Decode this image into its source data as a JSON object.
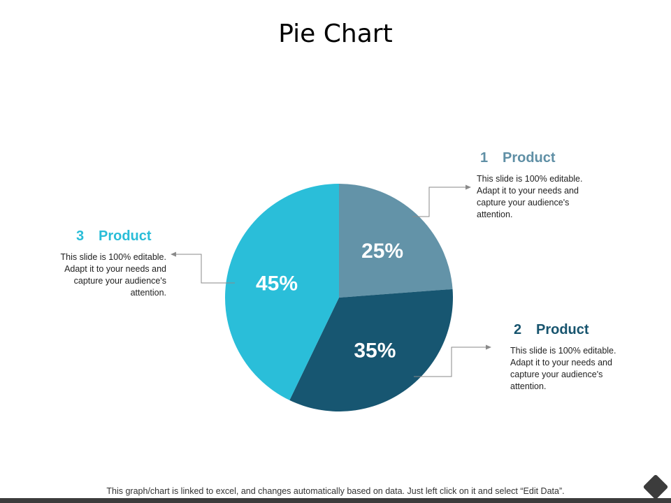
{
  "title": "Pie Chart",
  "footer_note": "This graph/chart is linked to excel, and changes automatically based on data. Just left click on it and select “Edit Data”.",
  "callouts": [
    {
      "number": "1",
      "heading": "Product",
      "text": "This slide is 100% editable. Adapt it to your needs and capture your audience's attention."
    },
    {
      "number": "2",
      "heading": "Product",
      "text": "This slide is 100% editable. Adapt it to your needs and capture your audience's attention."
    },
    {
      "number": "3",
      "heading": "Product",
      "text": "This slide is 100% editable. Adapt it to your needs and capture your audience's attention."
    }
  ],
  "chart_data": {
    "type": "pie",
    "categories": [
      "1 Product",
      "2 Product",
      "3 Product"
    ],
    "values": [
      25,
      35,
      45
    ],
    "labels": [
      "25%",
      "35%",
      "45%"
    ],
    "colors": [
      "#6393a8",
      "#175671",
      "#2abed9"
    ]
  },
  "icons": {
    "corner": "diamond-icon"
  }
}
